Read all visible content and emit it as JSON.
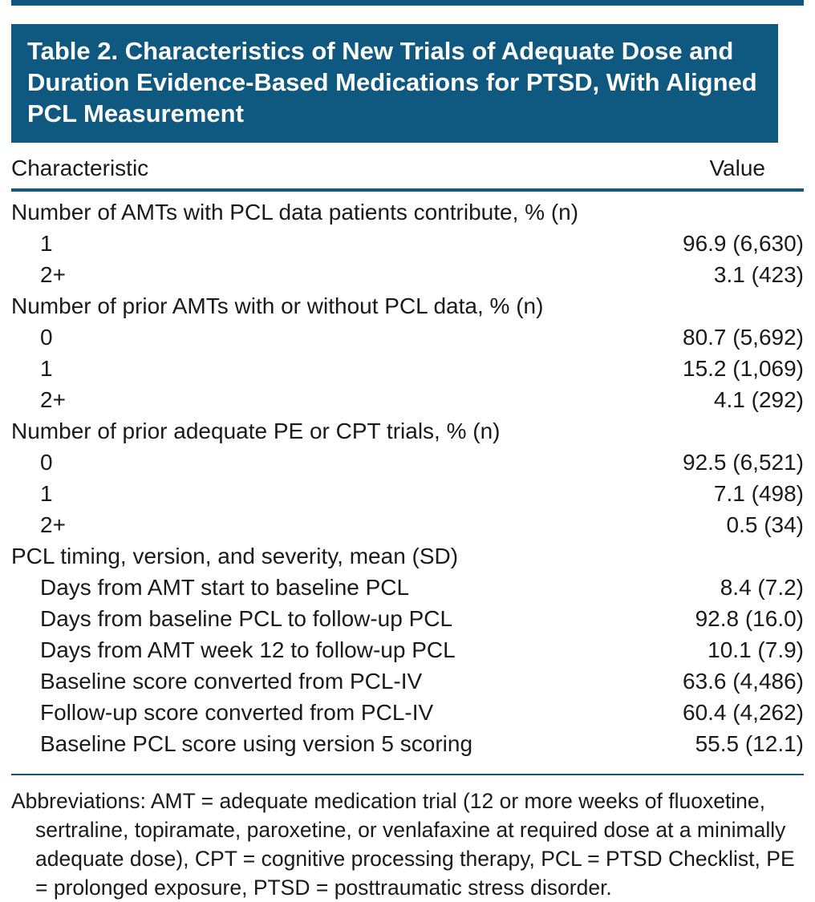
{
  "colors": {
    "accent": "#0f587f",
    "title_text": "#ffffff",
    "body_text": "#1a1a1a"
  },
  "table": {
    "title": "Table 2. Characteristics of New Trials of Adequate Dose and Duration Evidence-Based Medications for PTSD, With Aligned PCL Measurement",
    "columns": [
      "Characteristic",
      "Value"
    ],
    "rows": [
      {
        "label": "Number of AMTs with PCL data patients contribute, % (n)",
        "value": "",
        "indent": 0
      },
      {
        "label": "1",
        "value": "96.9 (6,630)",
        "indent": 1
      },
      {
        "label": "2+",
        "value": "3.1 (423)",
        "indent": 1
      },
      {
        "label": "Number of prior AMTs with or without PCL data, % (n)",
        "value": "",
        "indent": 0
      },
      {
        "label": "0",
        "value": "80.7 (5,692)",
        "indent": 1
      },
      {
        "label": "1",
        "value": "15.2 (1,069)",
        "indent": 1
      },
      {
        "label": "2+",
        "value": "4.1 (292)",
        "indent": 1
      },
      {
        "label": "Number of prior adequate PE or CPT trials, % (n)",
        "value": "",
        "indent": 0
      },
      {
        "label": "0",
        "value": "92.5 (6,521)",
        "indent": 1
      },
      {
        "label": "1",
        "value": "7.1 (498)",
        "indent": 1
      },
      {
        "label": "2+",
        "value": "0.5 (34)",
        "indent": 1
      },
      {
        "label": "PCL timing, version, and severity, mean (SD)",
        "value": "",
        "indent": 0
      },
      {
        "label": "Days from AMT start to baseline PCL",
        "value": "8.4 (7.2)",
        "indent": 1
      },
      {
        "label": "Days from baseline PCL to follow-up PCL",
        "value": "92.8 (16.0)",
        "indent": 1
      },
      {
        "label": "Days from AMT week 12 to follow-up PCL",
        "value": "10.1 (7.9)",
        "indent": 1
      },
      {
        "label": "Baseline score converted from PCL-IV",
        "value": "63.6 (4,486)",
        "indent": 1
      },
      {
        "label": "Follow-up score converted from PCL-IV",
        "value": "60.4 (4,262)",
        "indent": 1
      },
      {
        "label": "Baseline PCL score using version 5 scoring",
        "value": "55.5 (12.1)",
        "indent": 1
      }
    ],
    "footnote": "Abbreviations: AMT = adequate medication trial (12 or more weeks of fluoxetine, sertraline, topiramate, paroxetine, or venlafaxine at required dose at a minimally adequate dose), CPT = cognitive processing therapy, PCL = PTSD Checklist, PE = prolonged exposure, PTSD = posttraumatic stress disorder."
  }
}
